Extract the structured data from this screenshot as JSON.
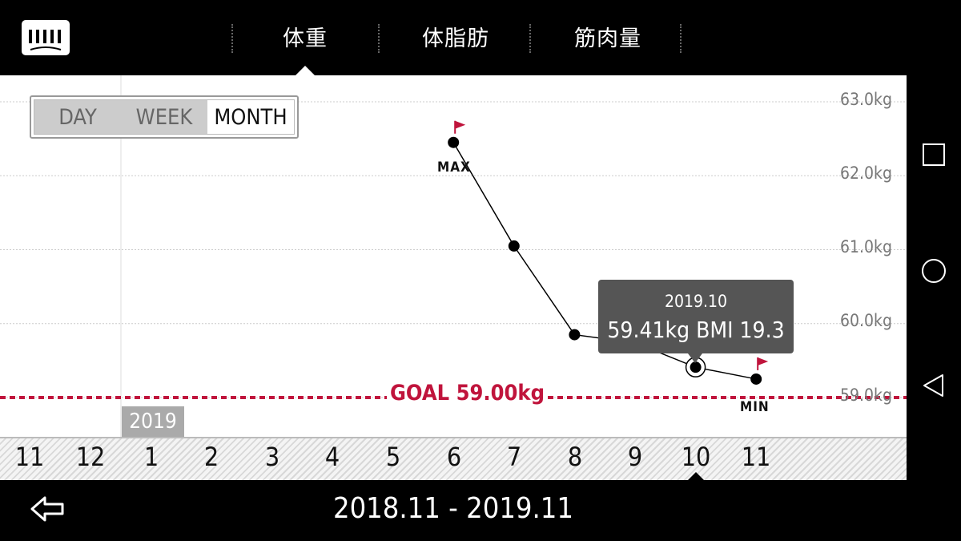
{
  "header": {
    "tabs": [
      {
        "label": "体重",
        "active": true
      },
      {
        "label": "体脂肪",
        "active": false
      },
      {
        "label": "筋肉量",
        "active": false
      }
    ],
    "logo_icon": "bar-logo-icon"
  },
  "range_toggle": {
    "options": [
      "DAY",
      "WEEK",
      "MONTH"
    ],
    "selected": "MONTH"
  },
  "year_label": "2019",
  "chart_data": {
    "type": "line",
    "x": [
      "11",
      "12",
      "1",
      "2",
      "3",
      "4",
      "5",
      "6",
      "7",
      "8",
      "9",
      "10",
      "11"
    ],
    "series": [
      {
        "values": [
          null,
          null,
          null,
          null,
          null,
          null,
          null,
          62.45,
          61.05,
          59.85,
          59.74,
          59.41,
          59.25
        ]
      }
    ],
    "y_tick_labels": [
      "63.0kg",
      "62.0kg",
      "61.0kg",
      "60.0kg",
      "59.0kg"
    ],
    "ylim": [
      59.0,
      63.0
    ],
    "goal": {
      "label": "GOAL 59.00kg",
      "value": 59.0
    },
    "max_label": "MAX",
    "min_label": "MIN",
    "selected_point": {
      "date": "2019.10",
      "value_text": "59.41kg  BMI 19.3"
    },
    "colors": {
      "line": "#000000",
      "goal": "#c0143c",
      "flag": "#c0143c"
    }
  },
  "footer": {
    "date_range": "2018.11 - 2019.11",
    "back_icon": "back-arrow-icon"
  },
  "android_nav": [
    "recents-square-icon",
    "home-circle-icon",
    "back-triangle-icon"
  ]
}
